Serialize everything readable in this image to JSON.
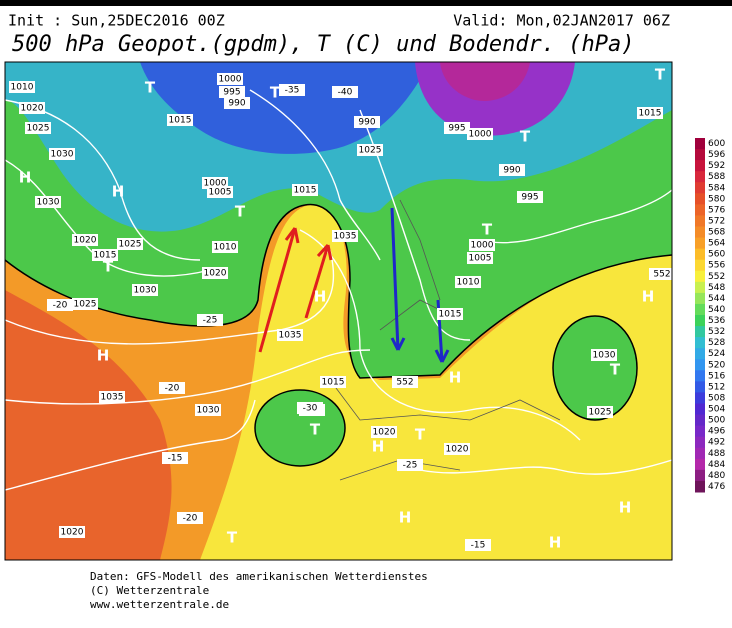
{
  "header": {
    "init": "Init : Sun,25DEC2016 00Z",
    "valid": "Valid: Mon,02JAN2017 06Z",
    "title": "500 hPa Geopot.(gpdm), T (C) und Bodendr. (hPa)"
  },
  "map": {
    "labels": [
      "1010",
      "1020",
      "1025",
      "1030",
      "H",
      "H",
      "1030",
      "1020",
      "1025",
      "1015",
      "T",
      "1025",
      "H",
      "1000",
      "995",
      "990",
      "T",
      "1015",
      "T",
      "1000",
      "1005",
      "1010",
      "1020",
      "1030",
      "T",
      "1015",
      "1035",
      "1035",
      "H",
      "1025",
      "990",
      "995",
      "1000",
      "T",
      "990",
      "995",
      "T",
      "1000",
      "1005",
      "1010",
      "1015",
      "1015",
      "T",
      "H",
      "552",
      "H",
      "1030",
      "T",
      "1035",
      "1030",
      "1015",
      "1010",
      "T",
      "1020",
      "H",
      "T",
      "1020",
      "H",
      "1025",
      "1020",
      "H",
      "H",
      "T",
      "-20",
      "-25",
      "-35",
      "-40",
      "-20",
      "-15",
      "-30",
      "-25",
      "-15",
      "-20",
      "552"
    ],
    "colorbar": {
      "ticks": [
        600,
        596,
        592,
        588,
        584,
        580,
        576,
        572,
        568,
        564,
        560,
        556,
        552,
        548,
        544,
        540,
        536,
        532,
        528,
        524,
        520,
        516,
        512,
        508,
        504,
        500,
        496,
        492,
        488,
        484,
        480,
        476
      ],
      "colors": [
        "#a0003c",
        "#b40a3c",
        "#c8143c",
        "#d8283c",
        "#e03c32",
        "#e65028",
        "#ec6428",
        "#f07828",
        "#f48c28",
        "#f8a028",
        "#fcbc28",
        "#fcd832",
        "#f8f03c",
        "#c8f050",
        "#96e65a",
        "#64dc5a",
        "#3cd25a",
        "#32c8a0",
        "#32bed2",
        "#32aae6",
        "#3296f0",
        "#3278f0",
        "#325ae6",
        "#3c3cdc",
        "#5028d2",
        "#6428c8",
        "#7828c8",
        "#8c28be",
        "#a028b4",
        "#b428aa",
        "#8c1e82",
        "#6e145a"
      ]
    }
  },
  "footer": [
    "Daten: GFS-Modell des amerikanischen Wetterdienstes",
    "(C) Wetterzentrale",
    "www.wetterzentrale.de"
  ]
}
